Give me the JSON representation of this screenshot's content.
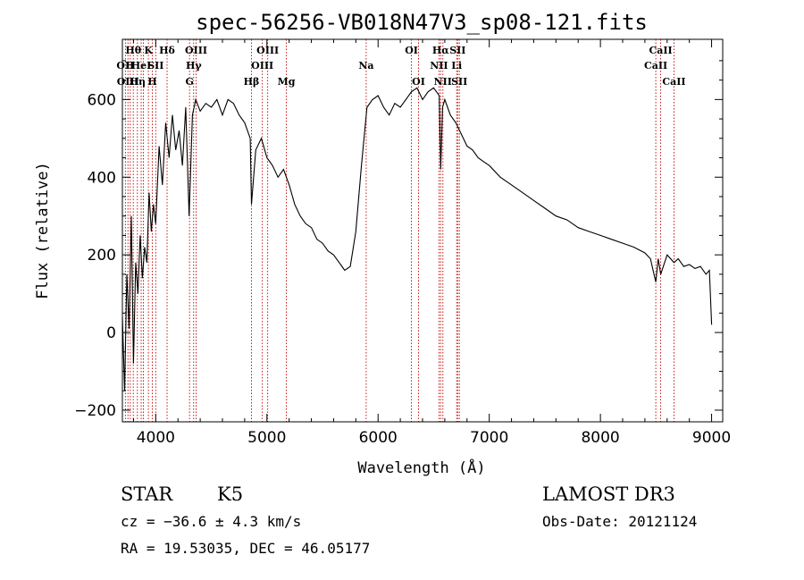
{
  "chart_data": {
    "type": "line",
    "title": "spec-56256-VB018N47V3_sp08-121.fits",
    "xlabel": "Wavelength (Å)",
    "ylabel": "Flux (relative)",
    "xlim": [
      3700,
      9100
    ],
    "ylim": [
      -230,
      755
    ],
    "xticks": [
      4000,
      5000,
      6000,
      7000,
      8000,
      9000
    ],
    "xtick_labels": [
      "4000",
      "5000",
      "6000",
      "7000",
      "8000",
      "9000"
    ],
    "yticks": [
      -200,
      0,
      200,
      400,
      600
    ],
    "ytick_labels": [
      "−200",
      "0",
      "200",
      "400",
      "600"
    ],
    "grid": false,
    "series": [
      {
        "x": [
          3700,
          3720,
          3740,
          3760,
          3780,
          3800,
          3820,
          3840,
          3860,
          3880,
          3900,
          3920,
          3940,
          3960,
          3980,
          4000,
          4030,
          4060,
          4090,
          4120,
          4150,
          4180,
          4210,
          4240,
          4270,
          4300,
          4330,
          4360,
          4400,
          4450,
          4500,
          4550,
          4600,
          4650,
          4700,
          4750,
          4800,
          4850,
          4861,
          4900,
          4950,
          5000,
          5050,
          5100,
          5150,
          5200,
          5250,
          5300,
          5350,
          5400,
          5450,
          5500,
          5550,
          5600,
          5650,
          5700,
          5750,
          5800,
          5850,
          5900,
          5950,
          6000,
          6050,
          6100,
          6150,
          6200,
          6250,
          6300,
          6350,
          6400,
          6450,
          6500,
          6550,
          6563,
          6580,
          6600,
          6650,
          6700,
          6750,
          6800,
          6850,
          6900,
          6950,
          7000,
          7100,
          7200,
          7300,
          7400,
          7500,
          7600,
          7700,
          7800,
          7900,
          8000,
          8100,
          8200,
          8300,
          8400,
          8450,
          8498,
          8520,
          8542,
          8600,
          8662,
          8700,
          8750,
          8800,
          8850,
          8900,
          8950,
          8980,
          9000
        ],
        "values": [
          40,
          -150,
          150,
          10,
          300,
          -80,
          180,
          100,
          250,
          140,
          220,
          180,
          360,
          260,
          330,
          280,
          480,
          380,
          540,
          450,
          560,
          470,
          520,
          430,
          580,
          300,
          560,
          600,
          570,
          590,
          580,
          600,
          560,
          600,
          590,
          560,
          540,
          500,
          330,
          470,
          500,
          450,
          430,
          400,
          420,
          380,
          330,
          300,
          280,
          270,
          240,
          230,
          210,
          200,
          180,
          160,
          170,
          260,
          430,
          580,
          600,
          610,
          580,
          560,
          590,
          580,
          600,
          620,
          630,
          600,
          620,
          630,
          610,
          420,
          580,
          600,
          560,
          540,
          510,
          480,
          470,
          450,
          440,
          430,
          400,
          380,
          360,
          340,
          320,
          300,
          290,
          270,
          260,
          250,
          240,
          230,
          220,
          205,
          190,
          130,
          190,
          150,
          200,
          180,
          190,
          170,
          175,
          165,
          170,
          150,
          160,
          20
        ]
      }
    ],
    "line_markers": [
      {
        "w": 3727,
        "label": "OII",
        "row": 1
      },
      {
        "w": 3750,
        "label": "OIII",
        "row": 2
      },
      {
        "w": 3771,
        "label": "H",
        "row": 1
      },
      {
        "w": 3798,
        "label": "Hθ",
        "row": 0
      },
      {
        "w": 3835,
        "label": "Hη",
        "row": 2
      },
      {
        "w": 3869,
        "label": "HeI",
        "row": 1
      },
      {
        "w": 3889,
        "label": "",
        "row": 2
      },
      {
        "w": 3934,
        "label": "K",
        "row": 0
      },
      {
        "w": 3969,
        "label": "H",
        "row": 2
      },
      {
        "w": 4000,
        "label": "SII",
        "row": 1
      },
      {
        "w": 4102,
        "label": "Hδ",
        "row": 0
      },
      {
        "w": 4304,
        "label": "G",
        "row": 2
      },
      {
        "w": 4341,
        "label": "Hγ",
        "row": 1
      },
      {
        "w": 4363,
        "label": "OIII",
        "row": 0
      },
      {
        "w": 4861,
        "label": "Hβ",
        "row": 2
      },
      {
        "w": 4959,
        "label": "OIII",
        "row": 1
      },
      {
        "w": 5007,
        "label": "OIII",
        "row": 0
      },
      {
        "w": 5175,
        "label": "Mg",
        "row": 2
      },
      {
        "w": 5893,
        "label": "Na",
        "row": 1
      },
      {
        "w": 6300,
        "label": "OI",
        "row": 0
      },
      {
        "w": 6364,
        "label": "OI",
        "row": 2
      },
      {
        "w": 6548,
        "label": "NII",
        "row": 1
      },
      {
        "w": 6563,
        "label": "Hα",
        "row": 0
      },
      {
        "w": 6583,
        "label": "NII",
        "row": 2
      },
      {
        "w": 6707,
        "label": "Li",
        "row": 1
      },
      {
        "w": 6716,
        "label": "SII",
        "row": 0
      },
      {
        "w": 6731,
        "label": "SII",
        "row": 2
      },
      {
        "w": 8498,
        "label": "CaII",
        "row": 1
      },
      {
        "w": 8542,
        "label": "CaII",
        "row": 0
      },
      {
        "w": 8662,
        "label": "CaII",
        "row": 2
      }
    ]
  },
  "info": {
    "class": "STAR",
    "subclass": "K5",
    "survey": "LAMOST DR3",
    "cz": "cz = −36.6 ± 4.3 km/s",
    "obs_date": "Obs-Date: 20121124",
    "radec": "RA =  19.53035, DEC =  46.05177"
  }
}
